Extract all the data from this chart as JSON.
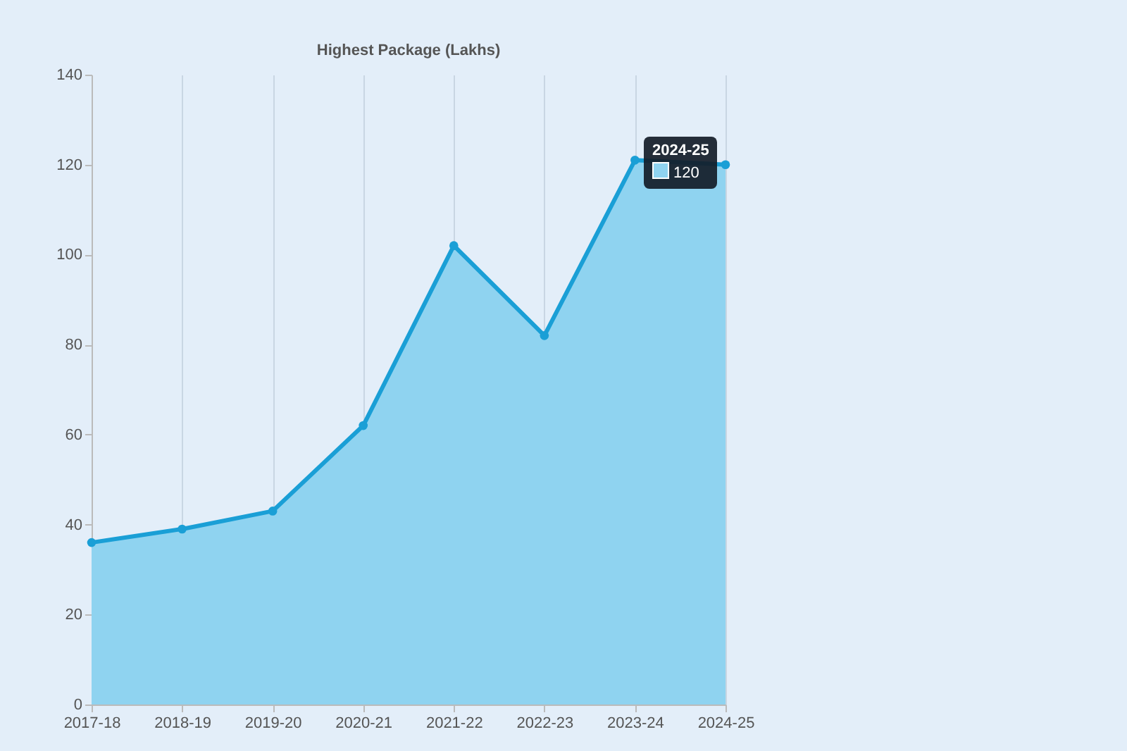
{
  "chart_data": {
    "type": "area",
    "title": "Highest Package (Lakhs)",
    "categories": [
      "2017-18",
      "2018-19",
      "2019-20",
      "2020-21",
      "2021-22",
      "2022-23",
      "2023-24",
      "2024-25"
    ],
    "series": [
      {
        "color": "#1a9fd6",
        "values": [
          36,
          39,
          43,
          62,
          102,
          82,
          121,
          120
        ]
      }
    ],
    "ylim": [
      0,
      140
    ],
    "yticks": [
      0,
      20,
      40,
      60,
      80,
      100,
      120,
      140
    ],
    "grid": "x",
    "marker": "circle",
    "annotations": [
      {
        "text": "2024-25",
        "x": "2024-25",
        "y": 120
      },
      {
        "text": "120",
        "x": "2024-25",
        "y": 120
      }
    ]
  }
}
